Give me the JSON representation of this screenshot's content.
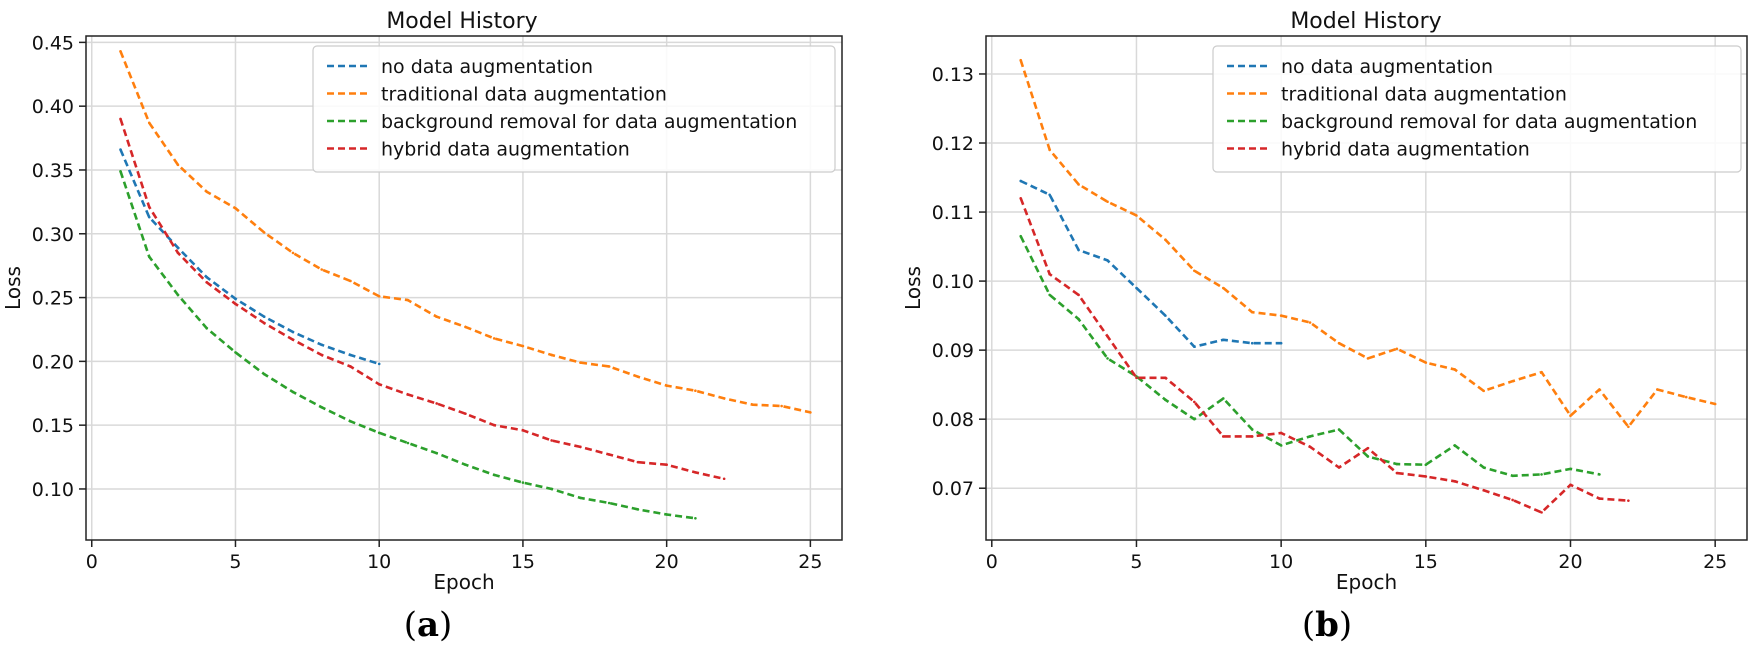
{
  "chart_data": [
    {
      "type": "line",
      "panel_label": "a",
      "title": "Model History",
      "xlabel": "Epoch",
      "ylabel": "Loss",
      "xlim": [
        -0.2,
        26.1
      ],
      "ylim": [
        0.06,
        0.455
      ],
      "xticks": [
        0,
        5,
        10,
        15,
        20,
        25
      ],
      "xtick_labels": [
        "0",
        "5",
        "10",
        "15",
        "20",
        "25"
      ],
      "yticks": [
        0.1,
        0.15,
        0.2,
        0.25,
        0.3,
        0.35,
        0.4,
        0.45
      ],
      "ytick_labels": [
        "0.10",
        "0.15",
        "0.20",
        "0.25",
        "0.30",
        "0.35",
        "0.40",
        "0.45"
      ],
      "grid": true,
      "legend_position": "top-right",
      "series": [
        {
          "name": "no data augmentation",
          "color": "#1f77b4",
          "x": [
            1,
            2,
            3,
            4,
            5,
            6,
            7,
            8,
            9,
            10
          ],
          "y": [
            0.366,
            0.313,
            0.289,
            0.266,
            0.249,
            0.235,
            0.223,
            0.213,
            0.205,
            0.198
          ]
        },
        {
          "name": "traditional data augmentation",
          "color": "#ff7f0e",
          "x": [
            1,
            2,
            3,
            4,
            5,
            6,
            7,
            8,
            9,
            10,
            11,
            12,
            13,
            14,
            15,
            16,
            17,
            18,
            19,
            20,
            21,
            22,
            23,
            24,
            25
          ],
          "y": [
            0.443,
            0.387,
            0.354,
            0.333,
            0.32,
            0.301,
            0.285,
            0.272,
            0.263,
            0.251,
            0.248,
            0.235,
            0.227,
            0.218,
            0.212,
            0.205,
            0.199,
            0.196,
            0.188,
            0.181,
            0.177,
            0.171,
            0.166,
            0.165,
            0.16
          ]
        },
        {
          "name": "background removal for data augmentation",
          "color": "#2ca02c",
          "x": [
            1,
            2,
            3,
            4,
            5,
            6,
            7,
            8,
            9,
            10,
            11,
            12,
            13,
            14,
            15,
            16,
            17,
            18,
            19,
            20,
            21
          ],
          "y": [
            0.349,
            0.282,
            0.252,
            0.226,
            0.207,
            0.19,
            0.176,
            0.164,
            0.153,
            0.144,
            0.136,
            0.128,
            0.119,
            0.111,
            0.105,
            0.1,
            0.093,
            0.089,
            0.084,
            0.08,
            0.077
          ]
        },
        {
          "name": "hybrid data augmentation",
          "color": "#d62728",
          "x": [
            1,
            2,
            3,
            4,
            5,
            6,
            7,
            8,
            9,
            10,
            11,
            12,
            13,
            14,
            15,
            16,
            17,
            18,
            19,
            20,
            21,
            22
          ],
          "y": [
            0.39,
            0.321,
            0.285,
            0.262,
            0.245,
            0.23,
            0.217,
            0.205,
            0.196,
            0.182,
            0.174,
            0.167,
            0.159,
            0.15,
            0.146,
            0.138,
            0.133,
            0.127,
            0.121,
            0.119,
            0.113,
            0.108
          ]
        }
      ]
    },
    {
      "type": "line",
      "panel_label": "b",
      "title": "Model History",
      "xlabel": "Epoch",
      "ylabel": "Loss",
      "xlim": [
        -0.2,
        26.1
      ],
      "ylim": [
        0.0625,
        0.1355
      ],
      "xticks": [
        0,
        5,
        10,
        15,
        20,
        25
      ],
      "xtick_labels": [
        "0",
        "5",
        "10",
        "15",
        "20",
        "25"
      ],
      "yticks": [
        0.07,
        0.08,
        0.09,
        0.1,
        0.11,
        0.12,
        0.13
      ],
      "ytick_labels": [
        "0.07",
        "0.08",
        "0.09",
        "0.10",
        "0.11",
        "0.12",
        "0.13"
      ],
      "grid": true,
      "legend_position": "top-right",
      "series": [
        {
          "name": "no data augmentation",
          "color": "#1f77b4",
          "x": [
            1,
            2,
            3,
            4,
            5,
            6,
            7,
            8,
            9,
            10
          ],
          "y": [
            0.1145,
            0.1125,
            0.1045,
            0.103,
            0.099,
            0.095,
            0.0905,
            0.0915,
            0.091,
            0.091
          ]
        },
        {
          "name": "traditional data augmentation",
          "color": "#ff7f0e",
          "x": [
            1,
            2,
            3,
            4,
            5,
            6,
            7,
            8,
            9,
            10,
            11,
            12,
            13,
            14,
            15,
            16,
            17,
            18,
            19,
            20,
            21,
            22,
            23,
            24,
            25
          ],
          "y": [
            0.132,
            0.119,
            0.114,
            0.1115,
            0.1095,
            0.106,
            0.1015,
            0.099,
            0.0955,
            0.095,
            0.094,
            0.091,
            0.0888,
            0.0902,
            0.0882,
            0.0872,
            0.0841,
            0.0855,
            0.0868,
            0.0805,
            0.0843,
            0.0789,
            0.0843,
            0.0832,
            0.0822
          ]
        },
        {
          "name": "background removal for data augmentation",
          "color": "#2ca02c",
          "x": [
            1,
            2,
            3,
            4,
            5,
            6,
            7,
            8,
            9,
            10,
            11,
            12,
            13,
            14,
            15,
            16,
            17,
            18,
            19,
            20,
            21
          ],
          "y": [
            0.1065,
            0.098,
            0.0945,
            0.0888,
            0.0862,
            0.0828,
            0.08,
            0.083,
            0.0785,
            0.0762,
            0.0775,
            0.0785,
            0.0746,
            0.0735,
            0.0734,
            0.0762,
            0.073,
            0.0718,
            0.072,
            0.0728,
            0.072
          ]
        },
        {
          "name": "hybrid data augmentation",
          "color": "#d62728",
          "x": [
            1,
            2,
            3,
            4,
            5,
            6,
            7,
            8,
            9,
            10,
            11,
            12,
            13,
            14,
            15,
            16,
            17,
            18,
            19,
            20,
            21,
            22
          ],
          "y": [
            0.112,
            0.101,
            0.098,
            0.092,
            0.086,
            0.086,
            0.0825,
            0.0775,
            0.0775,
            0.078,
            0.076,
            0.073,
            0.0758,
            0.0722,
            0.0717,
            0.071,
            0.0697,
            0.0683,
            0.0665,
            0.0705,
            0.0685,
            0.0682
          ]
        }
      ]
    }
  ]
}
